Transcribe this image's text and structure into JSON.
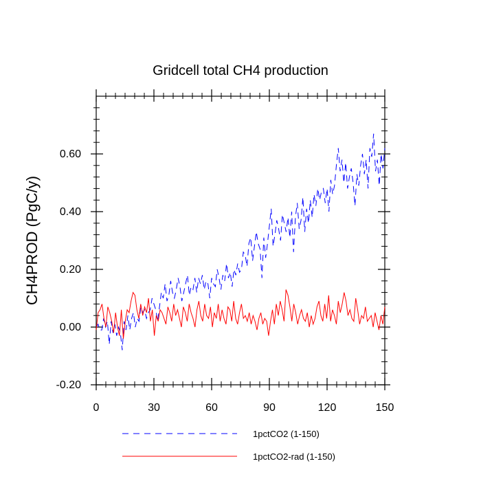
{
  "chart_data": {
    "type": "line",
    "title": "Gridcell total CH4 production",
    "xlabel": "",
    "ylabel": "CH4PROD  (PgC/y)",
    "xlim": [
      0,
      150
    ],
    "ylim": [
      -0.2,
      0.8
    ],
    "x_ticks": [
      0,
      30,
      60,
      90,
      120,
      150
    ],
    "x_tick_labels": [
      "0",
      "30",
      "60",
      "90",
      "120",
      "150"
    ],
    "y_ticks": [
      -0.2,
      0.0,
      0.2,
      0.4,
      0.6
    ],
    "y_tick_labels": [
      "-0.20",
      "0.00",
      "0.20",
      "0.40",
      "0.60"
    ],
    "grid": false,
    "legend_position": "bottom",
    "series": [
      {
        "name": "1pctCO2 (1-150)",
        "color": "#0000ff",
        "dash": "dashed",
        "values": [
          0.0,
          0.01,
          -0.01,
          -0.01,
          0.03,
          0.0,
          0.02,
          -0.06,
          0.02,
          -0.02,
          0.01,
          -0.03,
          0.0,
          -0.02,
          -0.08,
          0.02,
          -0.01,
          0.04,
          -0.01,
          0.03,
          0.05,
          0.0,
          0.03,
          0.02,
          0.07,
          0.05,
          0.06,
          0.03,
          0.05,
          0.06,
          0.1,
          0.08,
          0.06,
          0.02,
          0.07,
          0.12,
          0.1,
          0.15,
          0.09,
          0.11,
          0.16,
          0.12,
          0.1,
          0.13,
          0.17,
          0.14,
          0.09,
          0.12,
          0.15,
          0.18,
          0.11,
          0.14,
          0.13,
          0.17,
          0.12,
          0.17,
          0.15,
          0.18,
          0.13,
          0.16,
          0.15,
          0.1,
          0.17,
          0.15,
          0.14,
          0.2,
          0.17,
          0.13,
          0.18,
          0.16,
          0.22,
          0.17,
          0.19,
          0.14,
          0.2,
          0.18,
          0.22,
          0.19,
          0.2,
          0.26,
          0.25,
          0.21,
          0.29,
          0.31,
          0.23,
          0.28,
          0.33,
          0.29,
          0.27,
          0.17,
          0.31,
          0.24,
          0.29,
          0.35,
          0.41,
          0.28,
          0.32,
          0.37,
          0.34,
          0.3,
          0.39,
          0.36,
          0.33,
          0.38,
          0.31,
          0.4,
          0.26,
          0.38,
          0.43,
          0.34,
          0.37,
          0.45,
          0.33,
          0.41,
          0.36,
          0.44,
          0.38,
          0.46,
          0.42,
          0.48,
          0.44,
          0.47,
          0.48,
          0.43,
          0.48,
          0.4,
          0.51,
          0.46,
          0.49,
          0.56,
          0.62,
          0.54,
          0.58,
          0.5,
          0.57,
          0.48,
          0.52,
          0.55,
          0.5,
          0.42,
          0.53,
          0.49,
          0.56,
          0.6,
          0.53,
          0.58,
          0.48,
          0.62,
          0.59,
          0.67,
          0.54,
          0.58,
          0.49,
          0.6,
          0.55,
          0.62
        ]
      },
      {
        "name": "1pctCO2-rad (1-150)",
        "color": "#ff0000",
        "dash": "solid",
        "values": [
          -0.01,
          0.05,
          0.06,
          0.08,
          0.03,
          0.0,
          0.07,
          0.05,
          0.02,
          -0.02,
          0.05,
          0.0,
          -0.03,
          0.06,
          -0.04,
          0.02,
          0.06,
          0.05,
          0.09,
          0.12,
          0.11,
          0.06,
          0.03,
          0.08,
          0.04,
          0.07,
          0.05,
          0.1,
          0.02,
          0.06,
          -0.03,
          0.04,
          0.02,
          0.06,
          0.05,
          0.03,
          0.01,
          0.07,
          0.05,
          0.02,
          0.08,
          0.04,
          0.06,
          0.03,
          0.0,
          0.07,
          0.05,
          0.02,
          0.08,
          0.05,
          0.03,
          0.0,
          0.06,
          0.09,
          0.04,
          0.02,
          0.08,
          0.04,
          0.03,
          0.07,
          0.0,
          0.05,
          0.03,
          0.08,
          0.02,
          0.06,
          0.03,
          0.01,
          0.07,
          0.06,
          0.02,
          0.09,
          0.03,
          0.01,
          0.05,
          0.08,
          0.03,
          0.04,
          0.02,
          0.05,
          0.01,
          0.04,
          0.02,
          -0.01,
          0.03,
          0.05,
          0.01,
          0.03,
          0.02,
          -0.03,
          0.02,
          0.06,
          0.01,
          0.08,
          0.04,
          0.09,
          0.06,
          0.02,
          0.13,
          0.11,
          0.07,
          0.02,
          0.08,
          0.05,
          0.01,
          0.04,
          0.06,
          0.03,
          0.02,
          0.05,
          0.0,
          0.04,
          0.01,
          0.03,
          0.07,
          0.09,
          0.04,
          0.02,
          0.08,
          0.03,
          0.11,
          0.02,
          0.06,
          0.04,
          0.01,
          0.09,
          0.05,
          0.08,
          0.12,
          0.09,
          0.04,
          0.06,
          0.03,
          0.02,
          0.1,
          0.06,
          0.01,
          0.04,
          0.03,
          0.07,
          0.02,
          0.03,
          0.04,
          0.0,
          0.05,
          0.02,
          -0.01,
          0.04,
          0.01,
          0.07
        ]
      }
    ]
  }
}
